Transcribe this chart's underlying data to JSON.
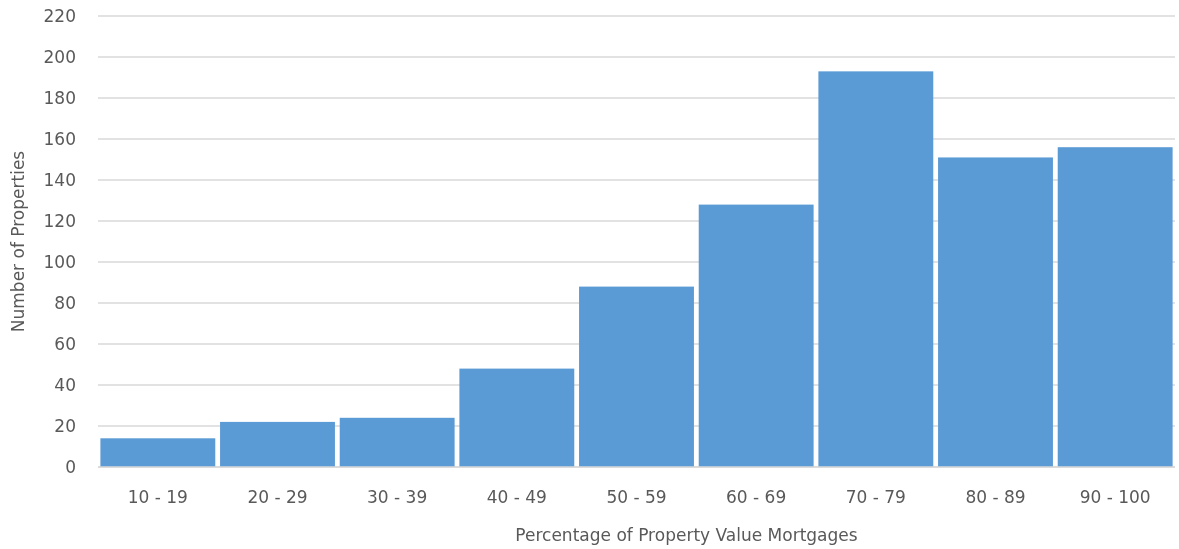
{
  "chart_data": {
    "type": "bar",
    "xlabel": "Percentage of Property Value Mortgages",
    "ylabel": "Number of Properties",
    "categories": [
      "10 - 19",
      "20 - 29",
      "30 - 39",
      "40 - 49",
      "50 - 59",
      "60 - 69",
      "70 - 79",
      "80 - 89",
      "90 - 100"
    ],
    "values": [
      14,
      22,
      24,
      48,
      88,
      128,
      193,
      151,
      156
    ],
    "color": "#5b9bd5",
    "ylim": [
      0,
      220
    ],
    "yticks": [
      0,
      20,
      40,
      60,
      80,
      100,
      120,
      140,
      160,
      180,
      200,
      220
    ],
    "grid": "y"
  }
}
